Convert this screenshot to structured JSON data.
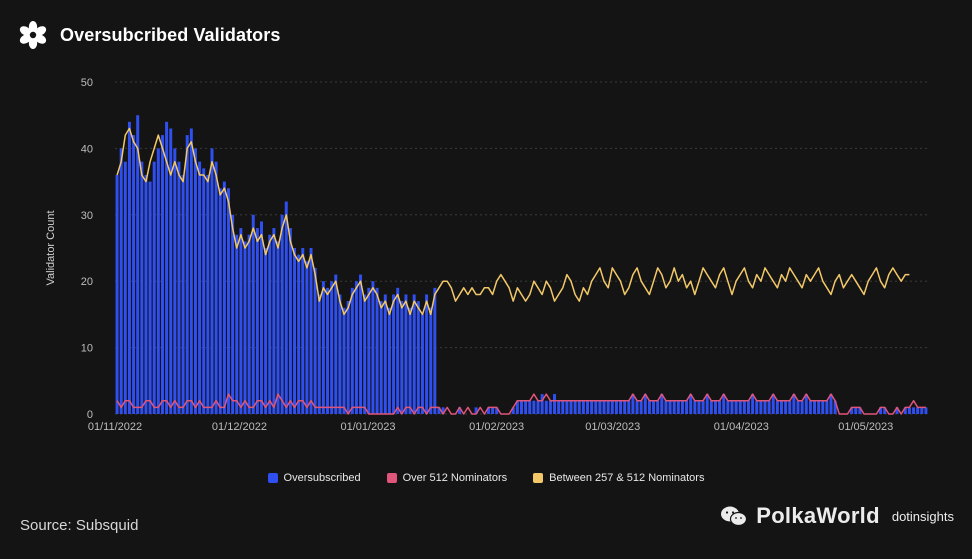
{
  "header": {
    "title": "Oversubcribed Validators",
    "logo_icon": "flower-icon"
  },
  "source": {
    "text": "Source: Subsquid"
  },
  "watermark": {
    "brand": "PolkaWorld",
    "sub": "dotinsights",
    "icon": "wechat-icon"
  },
  "colors": {
    "oversubscribed": "#2f4ff0",
    "over512": "#e0557a",
    "between": "#f2c868",
    "grid": "#3a3a3a",
    "axis_text": "#bdbdbd"
  },
  "chart_data": {
    "type": "bar",
    "title": "Oversubcribed Validators",
    "xlabel": "",
    "ylabel": "Validator Count",
    "ylim": [
      0,
      50
    ],
    "yticks": [
      "0",
      "10",
      "20",
      "30",
      "40",
      "50"
    ],
    "xticks": [
      {
        "label": "01/11/2022",
        "day": 0
      },
      {
        "label": "01/12/2022",
        "day": 30
      },
      {
        "label": "01/01/2023",
        "day": 61
      },
      {
        "label": "01/02/2023",
        "day": 92
      },
      {
        "label": "01/03/2023",
        "day": 120
      },
      {
        "label": "01/04/2023",
        "day": 151
      },
      {
        "label": "01/05/2023",
        "day": 181
      }
    ],
    "grid": true,
    "legend_position": "bottom",
    "series": [
      {
        "name": "Oversubscribed",
        "type": "bar",
        "values": [
          36,
          40,
          38,
          44,
          42,
          45,
          38,
          36,
          35,
          38,
          40,
          42,
          44,
          43,
          40,
          38,
          36,
          42,
          43,
          40,
          38,
          37,
          36,
          40,
          38,
          34,
          35,
          34,
          30,
          27,
          28,
          26,
          27,
          30,
          28,
          29,
          25,
          27,
          28,
          26,
          30,
          32,
          28,
          25,
          24,
          25,
          23,
          25,
          22,
          18,
          20,
          19,
          20,
          21,
          18,
          16,
          17,
          19,
          20,
          21,
          18,
          19,
          20,
          19,
          17,
          18,
          16,
          18,
          19,
          17,
          18,
          16,
          18,
          17,
          15,
          18,
          16,
          19,
          1,
          1,
          0,
          0,
          0,
          1,
          0,
          0,
          0,
          1,
          0,
          0,
          1,
          1,
          1,
          0,
          0,
          0,
          1,
          2,
          2,
          2,
          2,
          2,
          2,
          3,
          2,
          2,
          3,
          2,
          2,
          2,
          2,
          2,
          2,
          2,
          2,
          2,
          2,
          2,
          2,
          2,
          2,
          2,
          2,
          2,
          2,
          3,
          2,
          2,
          3,
          2,
          2,
          2,
          3,
          2,
          2,
          2,
          2,
          2,
          2,
          3,
          2,
          2,
          2,
          3,
          2,
          2,
          2,
          3,
          2,
          2,
          2,
          2,
          2,
          2,
          3,
          2,
          2,
          2,
          2,
          3,
          2,
          2,
          2,
          2,
          3,
          2,
          2,
          3,
          2,
          2,
          2,
          2,
          2,
          3,
          2,
          0,
          0,
          0,
          1,
          1,
          1,
          0,
          0,
          0,
          0,
          1,
          1,
          0,
          0,
          1,
          0,
          1,
          1,
          1,
          1,
          1,
          1
        ]
      },
      {
        "name": "Over 512 Nominators",
        "type": "line",
        "values": [
          2,
          1,
          2,
          2,
          1,
          1,
          1,
          2,
          2,
          1,
          1,
          2,
          2,
          1,
          2,
          1,
          1,
          2,
          2,
          1,
          2,
          1,
          1,
          1,
          2,
          1,
          1,
          3,
          2,
          2,
          1,
          2,
          1,
          1,
          2,
          2,
          1,
          2,
          1,
          3,
          2,
          1,
          2,
          1,
          2,
          2,
          1,
          2,
          1,
          1,
          1,
          1,
          1,
          1,
          1,
          1,
          0,
          1,
          1,
          1,
          1,
          0,
          0,
          0,
          0,
          0,
          0,
          0,
          1,
          0,
          1,
          1,
          0,
          1,
          1,
          0,
          1,
          1,
          1,
          0,
          1,
          0,
          0,
          1,
          0,
          1,
          0,
          0,
          1,
          0,
          1,
          1,
          1,
          0,
          0,
          0,
          1,
          2,
          2,
          2,
          2,
          3,
          2,
          2,
          3,
          2,
          2,
          2,
          2,
          2,
          2,
          2,
          2,
          2,
          2,
          2,
          2,
          2,
          2,
          2,
          2,
          2,
          2,
          2,
          2,
          3,
          2,
          2,
          3,
          2,
          2,
          2,
          3,
          2,
          2,
          2,
          2,
          2,
          2,
          3,
          2,
          2,
          2,
          3,
          2,
          2,
          2,
          3,
          2,
          2,
          2,
          2,
          2,
          2,
          3,
          2,
          2,
          2,
          2,
          3,
          2,
          2,
          2,
          2,
          3,
          2,
          2,
          3,
          2,
          2,
          2,
          2,
          2,
          3,
          2,
          0,
          0,
          0,
          1,
          1,
          1,
          0,
          0,
          0,
          0,
          1,
          1,
          0,
          0,
          1,
          0,
          1,
          1,
          2,
          1,
          1,
          1
        ]
      },
      {
        "name": "Between 257 & 512 Nominators",
        "type": "line",
        "values": [
          36,
          38,
          42,
          43,
          41,
          40,
          36,
          35,
          38,
          40,
          42,
          40,
          38,
          36,
          38,
          36,
          35,
          40,
          41,
          38,
          36,
          36,
          35,
          38,
          36,
          33,
          34,
          32,
          28,
          25,
          27,
          25,
          26,
          28,
          26,
          27,
          24,
          26,
          27,
          25,
          28,
          30,
          26,
          24,
          23,
          24,
          22,
          24,
          21,
          17,
          19,
          18,
          19,
          20,
          17,
          15,
          16,
          18,
          19,
          20,
          17,
          18,
          19,
          18,
          16,
          17,
          15,
          17,
          18,
          16,
          17,
          15,
          17,
          16,
          15,
          17,
          15,
          18,
          19,
          20,
          20,
          19,
          17,
          18,
          19,
          18,
          19,
          18,
          18,
          19,
          19,
          18,
          20,
          21,
          20,
          19,
          17,
          19,
          18,
          17,
          18,
          20,
          19,
          18,
          20,
          19,
          17,
          18,
          19,
          21,
          20,
          18,
          17,
          19,
          18,
          20,
          21,
          22,
          20,
          19,
          22,
          21,
          20,
          18,
          19,
          21,
          22,
          20,
          19,
          18,
          20,
          22,
          21,
          19,
          20,
          22,
          20,
          21,
          19,
          20,
          18,
          20,
          22,
          21,
          20,
          19,
          21,
          22,
          20,
          18,
          20,
          21,
          22,
          20,
          19,
          21,
          20,
          22,
          21,
          20,
          19,
          21,
          20,
          22,
          21,
          20,
          19,
          21,
          20,
          21,
          22,
          20,
          19,
          18,
          20,
          21,
          19,
          20,
          21,
          20,
          19,
          18,
          20,
          21,
          22,
          20,
          19,
          21,
          22,
          21,
          20,
          21,
          21
        ]
      }
    ]
  }
}
